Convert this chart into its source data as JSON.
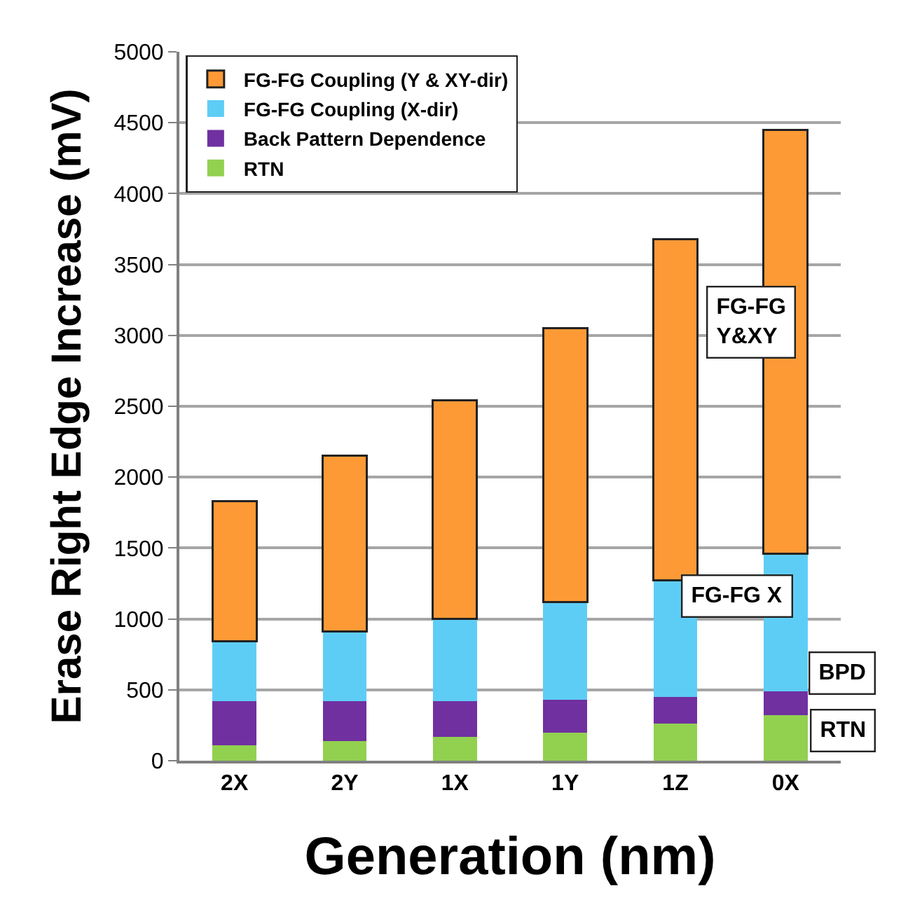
{
  "chart_data": {
    "type": "bar",
    "stacked": true,
    "xlabel": "Generation (nm)",
    "ylabel": "Erase Right Edge Increase (mV)",
    "categories": [
      "2X",
      "2Y",
      "1X",
      "1Y",
      "1Z",
      "0X"
    ],
    "series": [
      {
        "name": "RTN",
        "color": "#92d050",
        "values": [
          110,
          140,
          170,
          200,
          260,
          320
        ]
      },
      {
        "name": "Back Pattern Dependence",
        "color": "#7030a0",
        "values": [
          310,
          280,
          250,
          230,
          190,
          170
        ]
      },
      {
        "name": "FG-FG Coupling (X-dir)",
        "color": "#5ecdf5",
        "values": [
          420,
          490,
          580,
          690,
          820,
          970
        ]
      },
      {
        "name": "FG-FG Coupling (Y & XY-dir)",
        "color": "#fd9a36",
        "values": [
          990,
          1240,
          1540,
          1930,
          2410,
          2990
        ]
      }
    ],
    "ylim": [
      0,
      5000
    ],
    "yticks": [
      0,
      500,
      1000,
      1500,
      2000,
      2500,
      3000,
      3500,
      4000,
      4500,
      5000
    ],
    "grid": "y",
    "legend": "top left",
    "annotations": [
      "FG-FG\nY&XY",
      "FG-FG X",
      "BPD",
      "RTN"
    ]
  }
}
